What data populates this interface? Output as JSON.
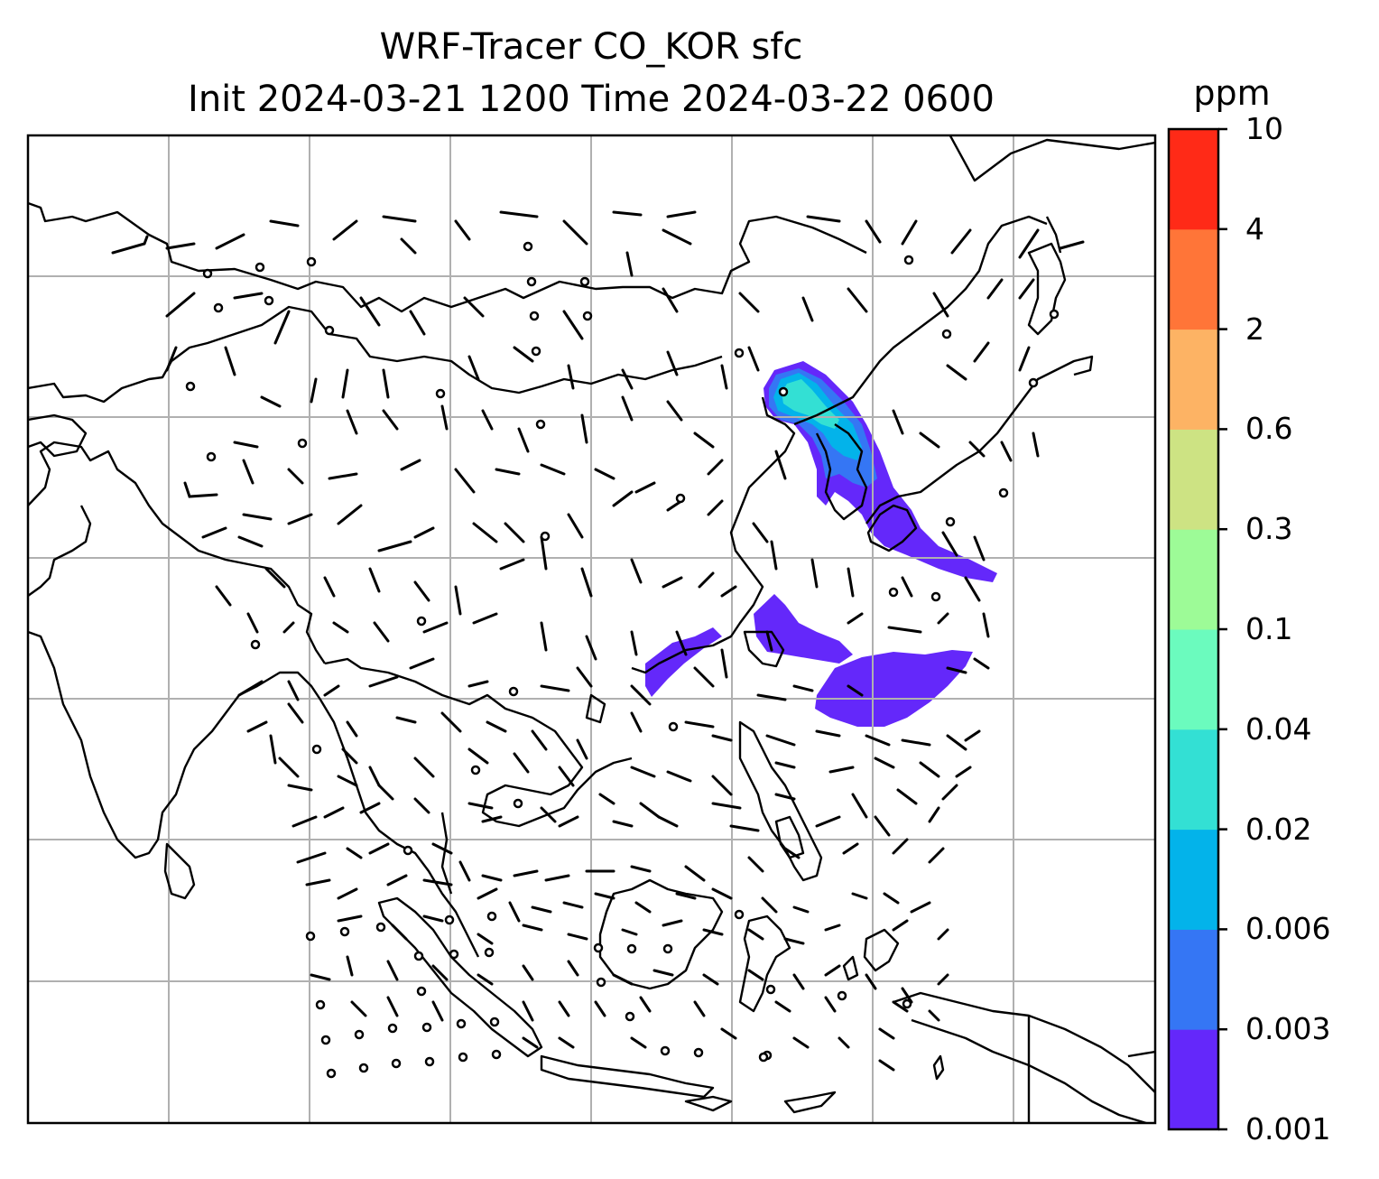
{
  "title_line1": "WRF-Tracer CO_KOR sfc",
  "title_line2": "Init 2024-03-21 1200 Time 2024-03-22 0600",
  "colorbar": {
    "unit": "ppm",
    "levels": [
      "0.001",
      "0.003",
      "0.006",
      "0.02",
      "0.04",
      "0.1",
      "0.3",
      "0.6",
      "2",
      "4",
      "10"
    ],
    "colors": [
      "#6428fa",
      "#3576f4",
      "#03b3ea",
      "#33e0d4",
      "#6bfbbe",
      "#9dfb97",
      "#cde383",
      "#fdb364",
      "#ff7538",
      "#ff2a17"
    ]
  },
  "map": {
    "gridlines": true,
    "coastline_color": "#000000",
    "gridline_color": "#b0b0b0",
    "wind_barbs": true,
    "tracer_plume_regions": [
      "Korea / Yellow Sea",
      "East China Sea",
      "Western Pacific south of Japan"
    ]
  }
}
